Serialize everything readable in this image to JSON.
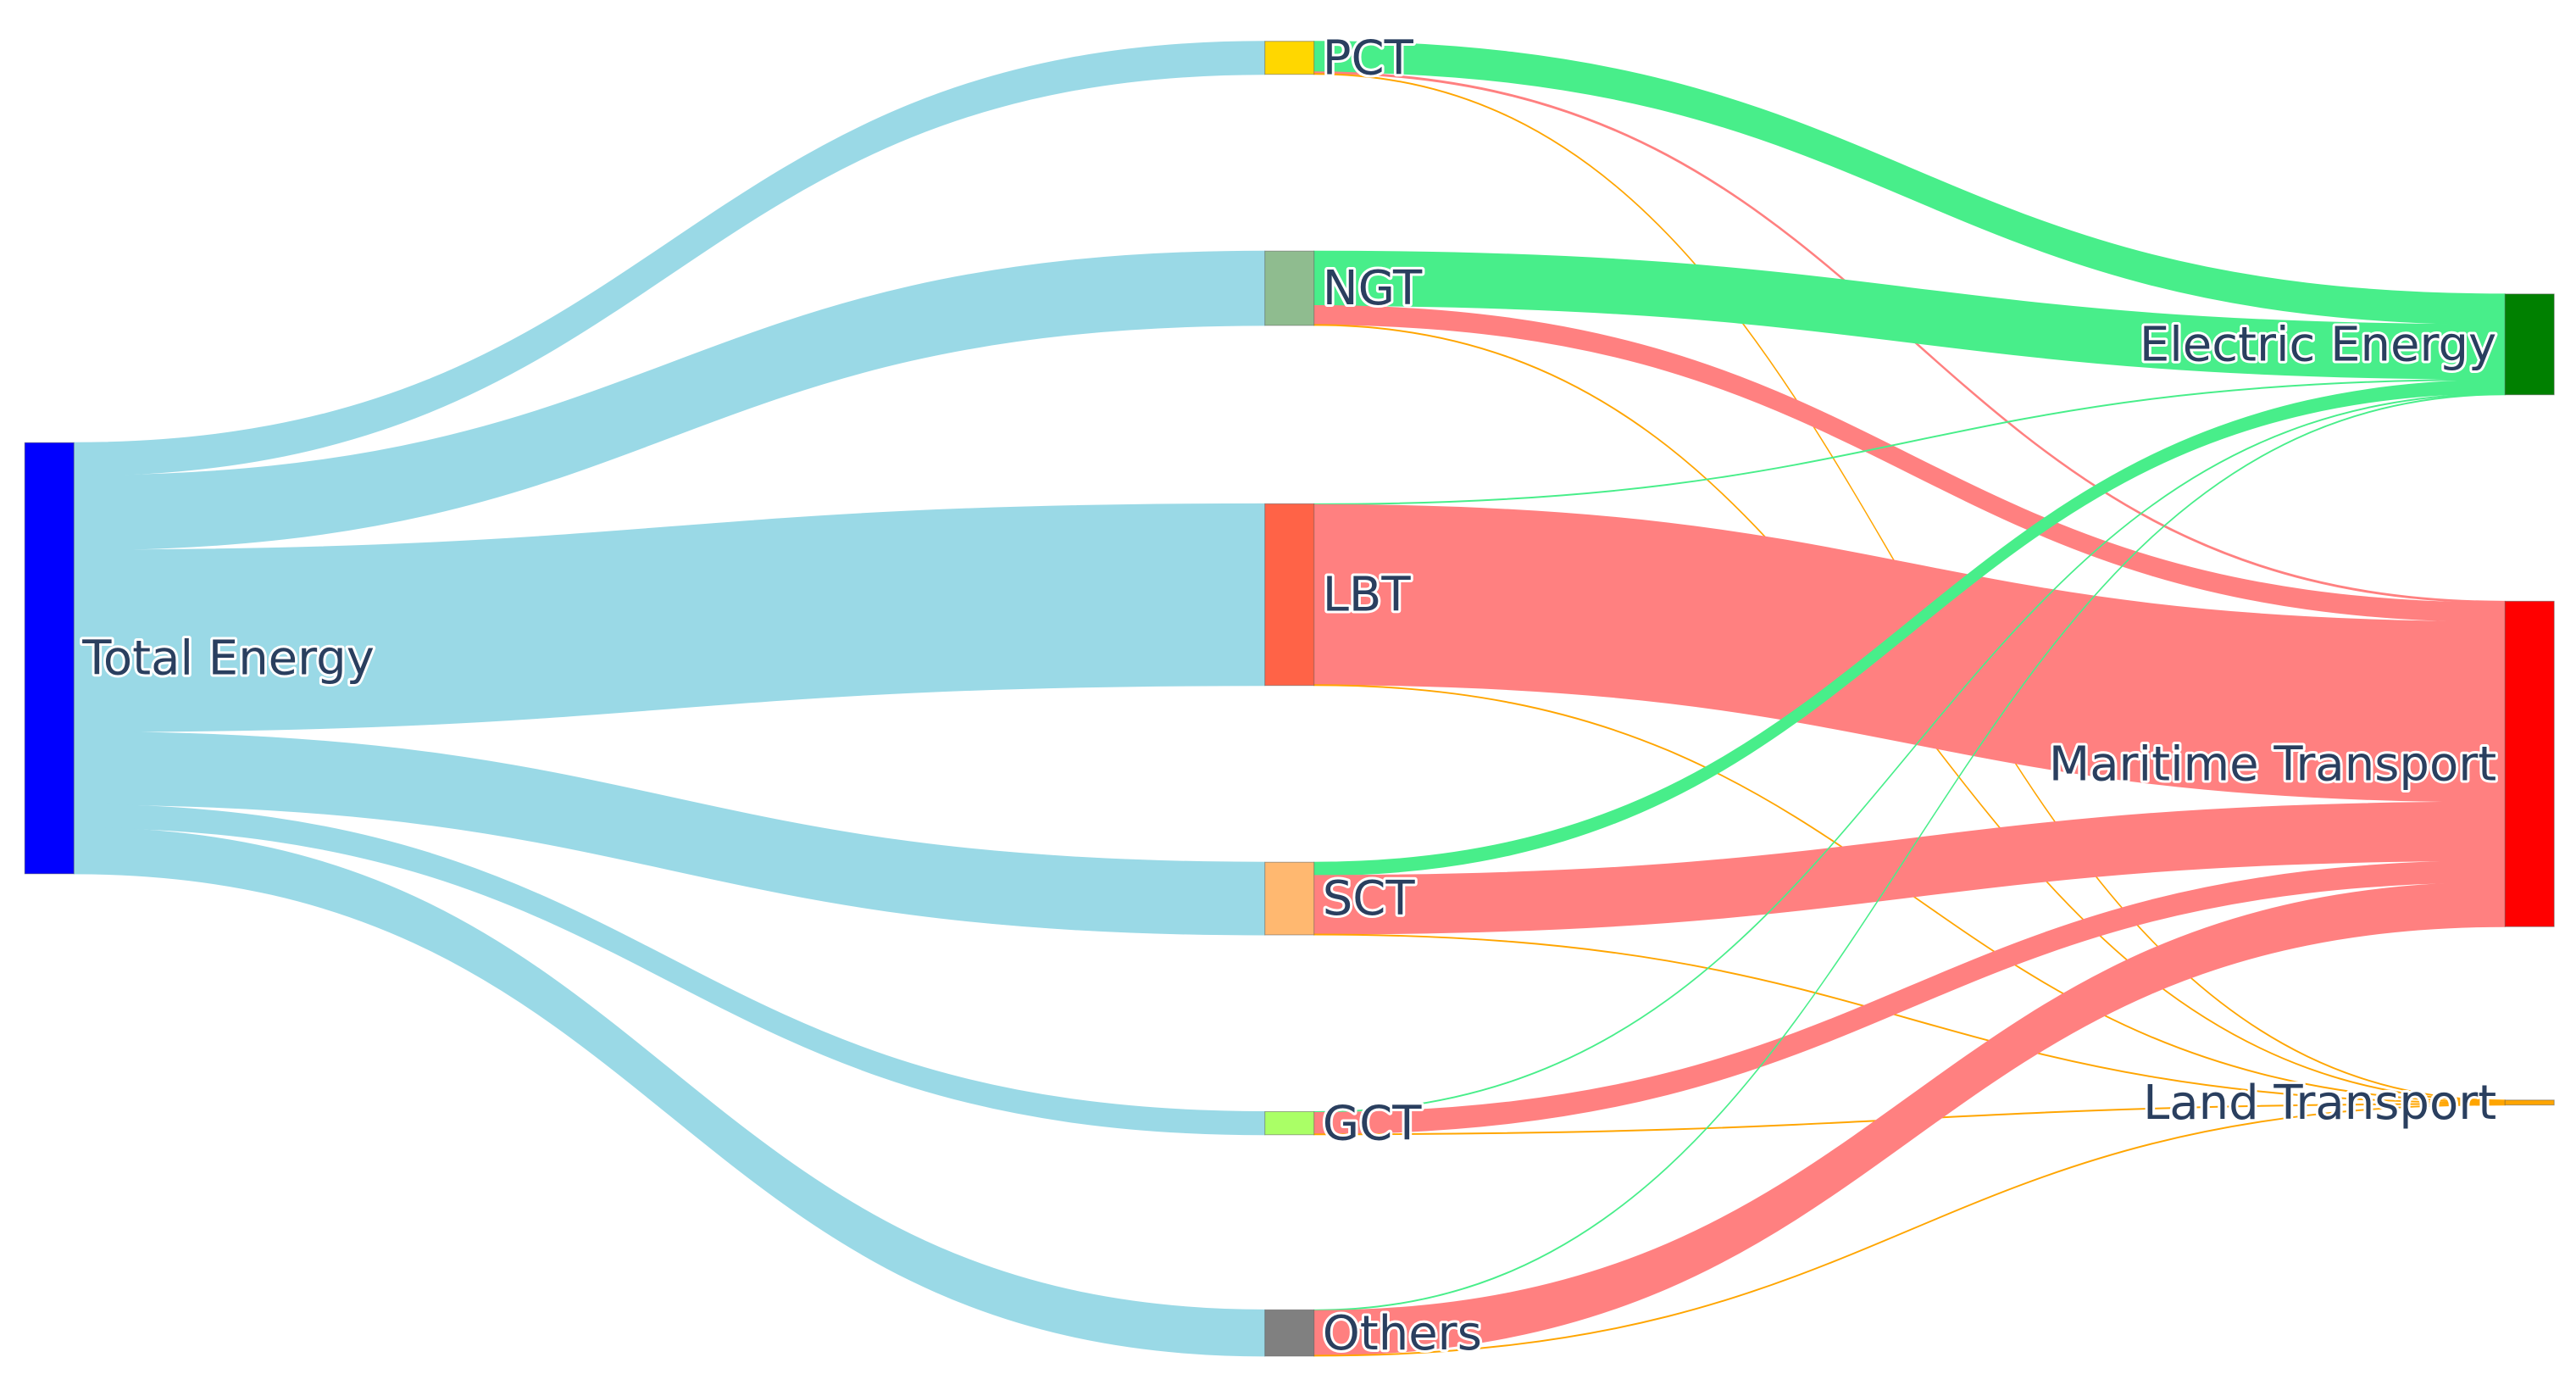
{
  "chart_data": {
    "type": "sankey",
    "nodes": [
      {
        "name": "Total Energy",
        "color": "#0000ff"
      },
      {
        "name": "PCT",
        "color": "#ffd700"
      },
      {
        "name": "NGT",
        "color": "#8fbc8f"
      },
      {
        "name": "LBT",
        "color": "#ff6347"
      },
      {
        "name": "SCT",
        "color": "#ffb870"
      },
      {
        "name": "GCT",
        "color": "#aaff66"
      },
      {
        "name": "Others",
        "color": "#808080"
      },
      {
        "name": "Electric Energy",
        "color": "#008000"
      },
      {
        "name": "Maritime Transport",
        "color": "#ff0000"
      },
      {
        "name": "Land Transport",
        "color": "#ffa500"
      }
    ],
    "links": [
      {
        "source": 0,
        "target": 1,
        "value": 20,
        "color": "#9ad9e6"
      },
      {
        "source": 0,
        "target": 2,
        "value": 45,
        "color": "#9ad9e6"
      },
      {
        "source": 0,
        "target": 3,
        "value": 110,
        "color": "#9ad9e6"
      },
      {
        "source": 0,
        "target": 4,
        "value": 44,
        "color": "#9ad9e6"
      },
      {
        "source": 0,
        "target": 5,
        "value": 14,
        "color": "#9ad9e6"
      },
      {
        "source": 0,
        "target": 6,
        "value": 28,
        "color": "#9ad9e6"
      },
      {
        "source": 1,
        "target": 7,
        "value": 18.5,
        "color": "#48ee8a"
      },
      {
        "source": 1,
        "target": 8,
        "value": 1,
        "color": "#ff8080"
      },
      {
        "source": 1,
        "target": 9,
        "value": 0.5,
        "color": "#ffa500"
      },
      {
        "source": 2,
        "target": 7,
        "value": 33,
        "color": "#48ee8a"
      },
      {
        "source": 2,
        "target": 8,
        "value": 11.5,
        "color": "#ff8080"
      },
      {
        "source": 2,
        "target": 9,
        "value": 0.5,
        "color": "#ffa500"
      },
      {
        "source": 3,
        "target": 7,
        "value": 0.5,
        "color": "#48ee8a"
      },
      {
        "source": 3,
        "target": 8,
        "value": 109,
        "color": "#ff8080"
      },
      {
        "source": 3,
        "target": 9,
        "value": 0.5,
        "color": "#ffa500"
      },
      {
        "source": 4,
        "target": 7,
        "value": 8,
        "color": "#48ee8a"
      },
      {
        "source": 4,
        "target": 8,
        "value": 35.5,
        "color": "#ff8080"
      },
      {
        "source": 4,
        "target": 9,
        "value": 0.5,
        "color": "#ffa500"
      },
      {
        "source": 5,
        "target": 7,
        "value": 0.5,
        "color": "#48ee8a"
      },
      {
        "source": 5,
        "target": 8,
        "value": 13,
        "color": "#ff8080"
      },
      {
        "source": 5,
        "target": 9,
        "value": 0.5,
        "color": "#ffa500"
      },
      {
        "source": 6,
        "target": 7,
        "value": 0.5,
        "color": "#48ee8a"
      },
      {
        "source": 6,
        "target": 8,
        "value": 27,
        "color": "#ff8080"
      },
      {
        "source": 6,
        "target": 9,
        "value": 0.5,
        "color": "#ffa500"
      }
    ]
  }
}
